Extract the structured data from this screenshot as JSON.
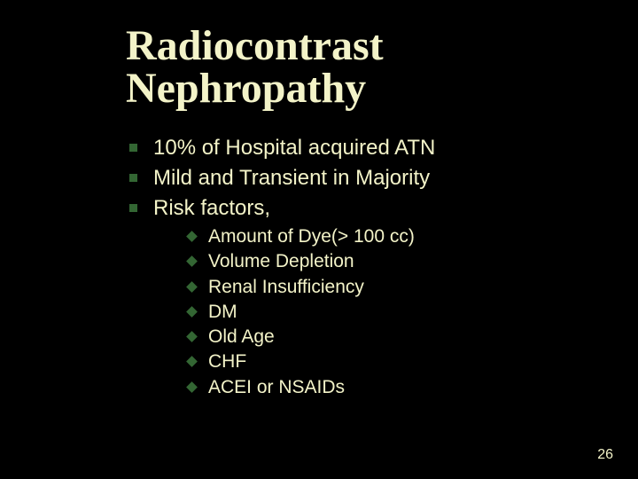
{
  "slide": {
    "title_line1": "Radiocontrast",
    "title_line2": "Nephropathy",
    "bullets": [
      {
        "text": "10% of Hospital acquired ATN"
      },
      {
        "text": "Mild and Transient in Majority"
      },
      {
        "text": "Risk factors,"
      }
    ],
    "subbullets": [
      {
        "text": "Amount of Dye(> 100 cc)"
      },
      {
        "text": "Volume Depletion"
      },
      {
        "text": "Renal Insufficiency"
      },
      {
        "text": "DM"
      },
      {
        "text": "Old Age"
      },
      {
        "text": "CHF"
      },
      {
        "text": "ACEI or NSAIDs"
      }
    ],
    "page_number": "26"
  },
  "style": {
    "background_color": "#000000",
    "text_color": "#f3f3c8",
    "bullet_color": "#336633",
    "title_font": "Times New Roman",
    "title_fontsize_pt": 36,
    "body_font": "Arial",
    "body_fontsize_pt": 18,
    "sub_fontsize_pt": 16,
    "pagenum_fontsize_pt": 12
  }
}
